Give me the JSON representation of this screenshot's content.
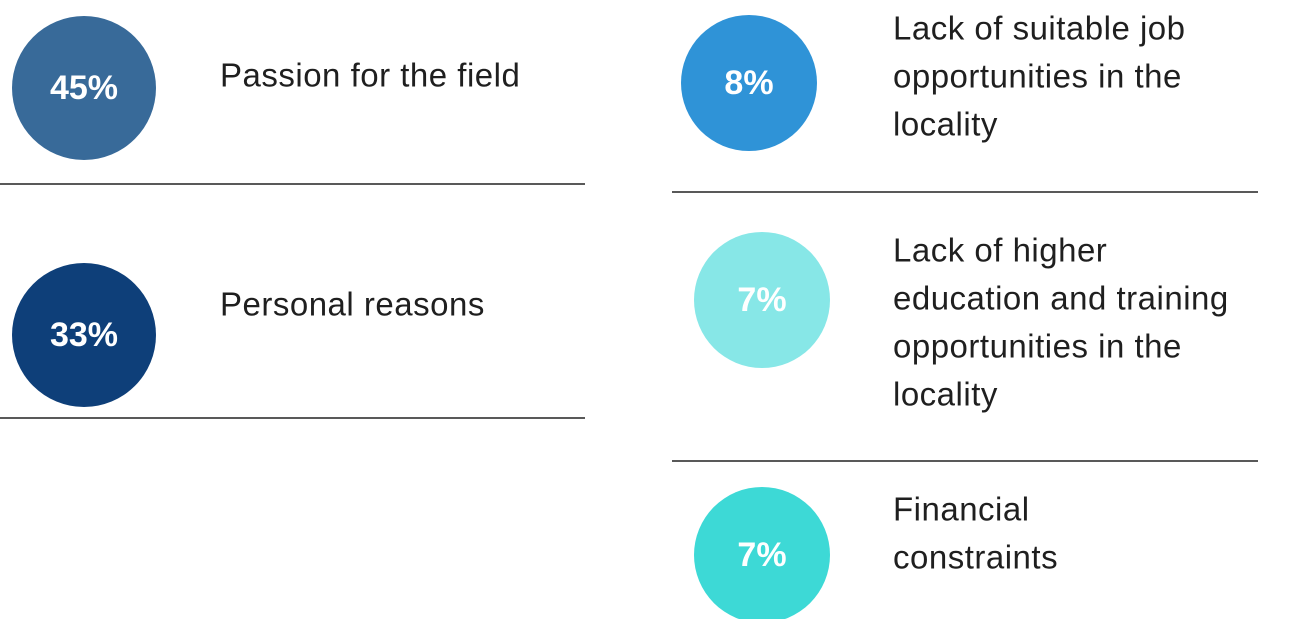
{
  "items": [
    {
      "value": "45%",
      "lines": [
        "Passion for the field"
      ]
    },
    {
      "value": "33%",
      "lines": [
        "Personal reasons"
      ]
    },
    {
      "value": "8%",
      "lines": [
        "Lack of suitable job",
        "opportunities in the",
        "locality"
      ]
    },
    {
      "value": "7%",
      "lines": [
        "Lack of higher",
        "education and training",
        "opportunities in the",
        "locality"
      ]
    },
    {
      "value": "7%",
      "lines": [
        "Financial",
        "constraints"
      ]
    }
  ]
}
